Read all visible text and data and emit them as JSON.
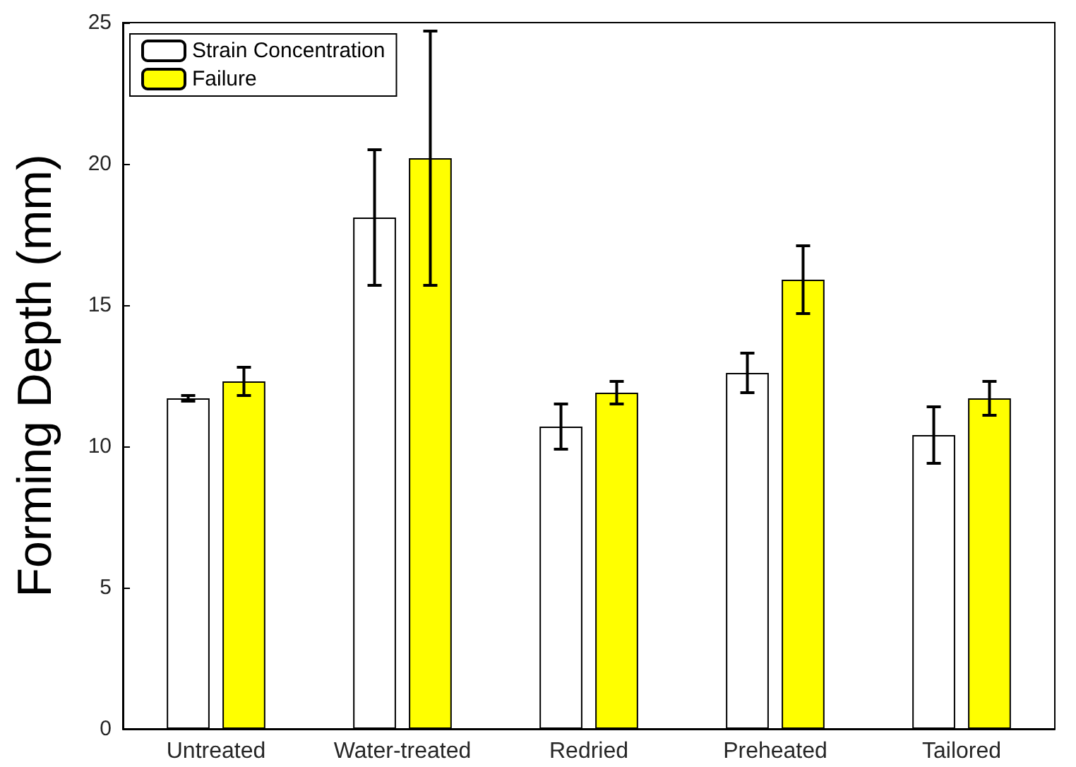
{
  "chart_data": {
    "type": "bar",
    "ylabel": "Forming Depth (mm)",
    "categories": [
      "Untreated",
      "Water-treated",
      "Redried",
      "Preheated",
      "Tailored"
    ],
    "series": [
      {
        "name": "Strain Concentration",
        "color": "#ffffff",
        "values": [
          11.7,
          18.1,
          10.7,
          12.6,
          10.4
        ],
        "errors": [
          0.1,
          2.4,
          0.8,
          0.7,
          1.0
        ]
      },
      {
        "name": "Failure",
        "color": "#ffff00",
        "values": [
          12.3,
          20.2,
          11.9,
          15.9,
          11.7
        ],
        "errors": [
          0.5,
          4.5,
          0.4,
          1.2,
          0.6
        ]
      }
    ],
    "ylim": [
      0,
      25
    ],
    "yticks": [
      0,
      5,
      10,
      15,
      20,
      25
    ],
    "grid": false,
    "legend": "top left"
  }
}
